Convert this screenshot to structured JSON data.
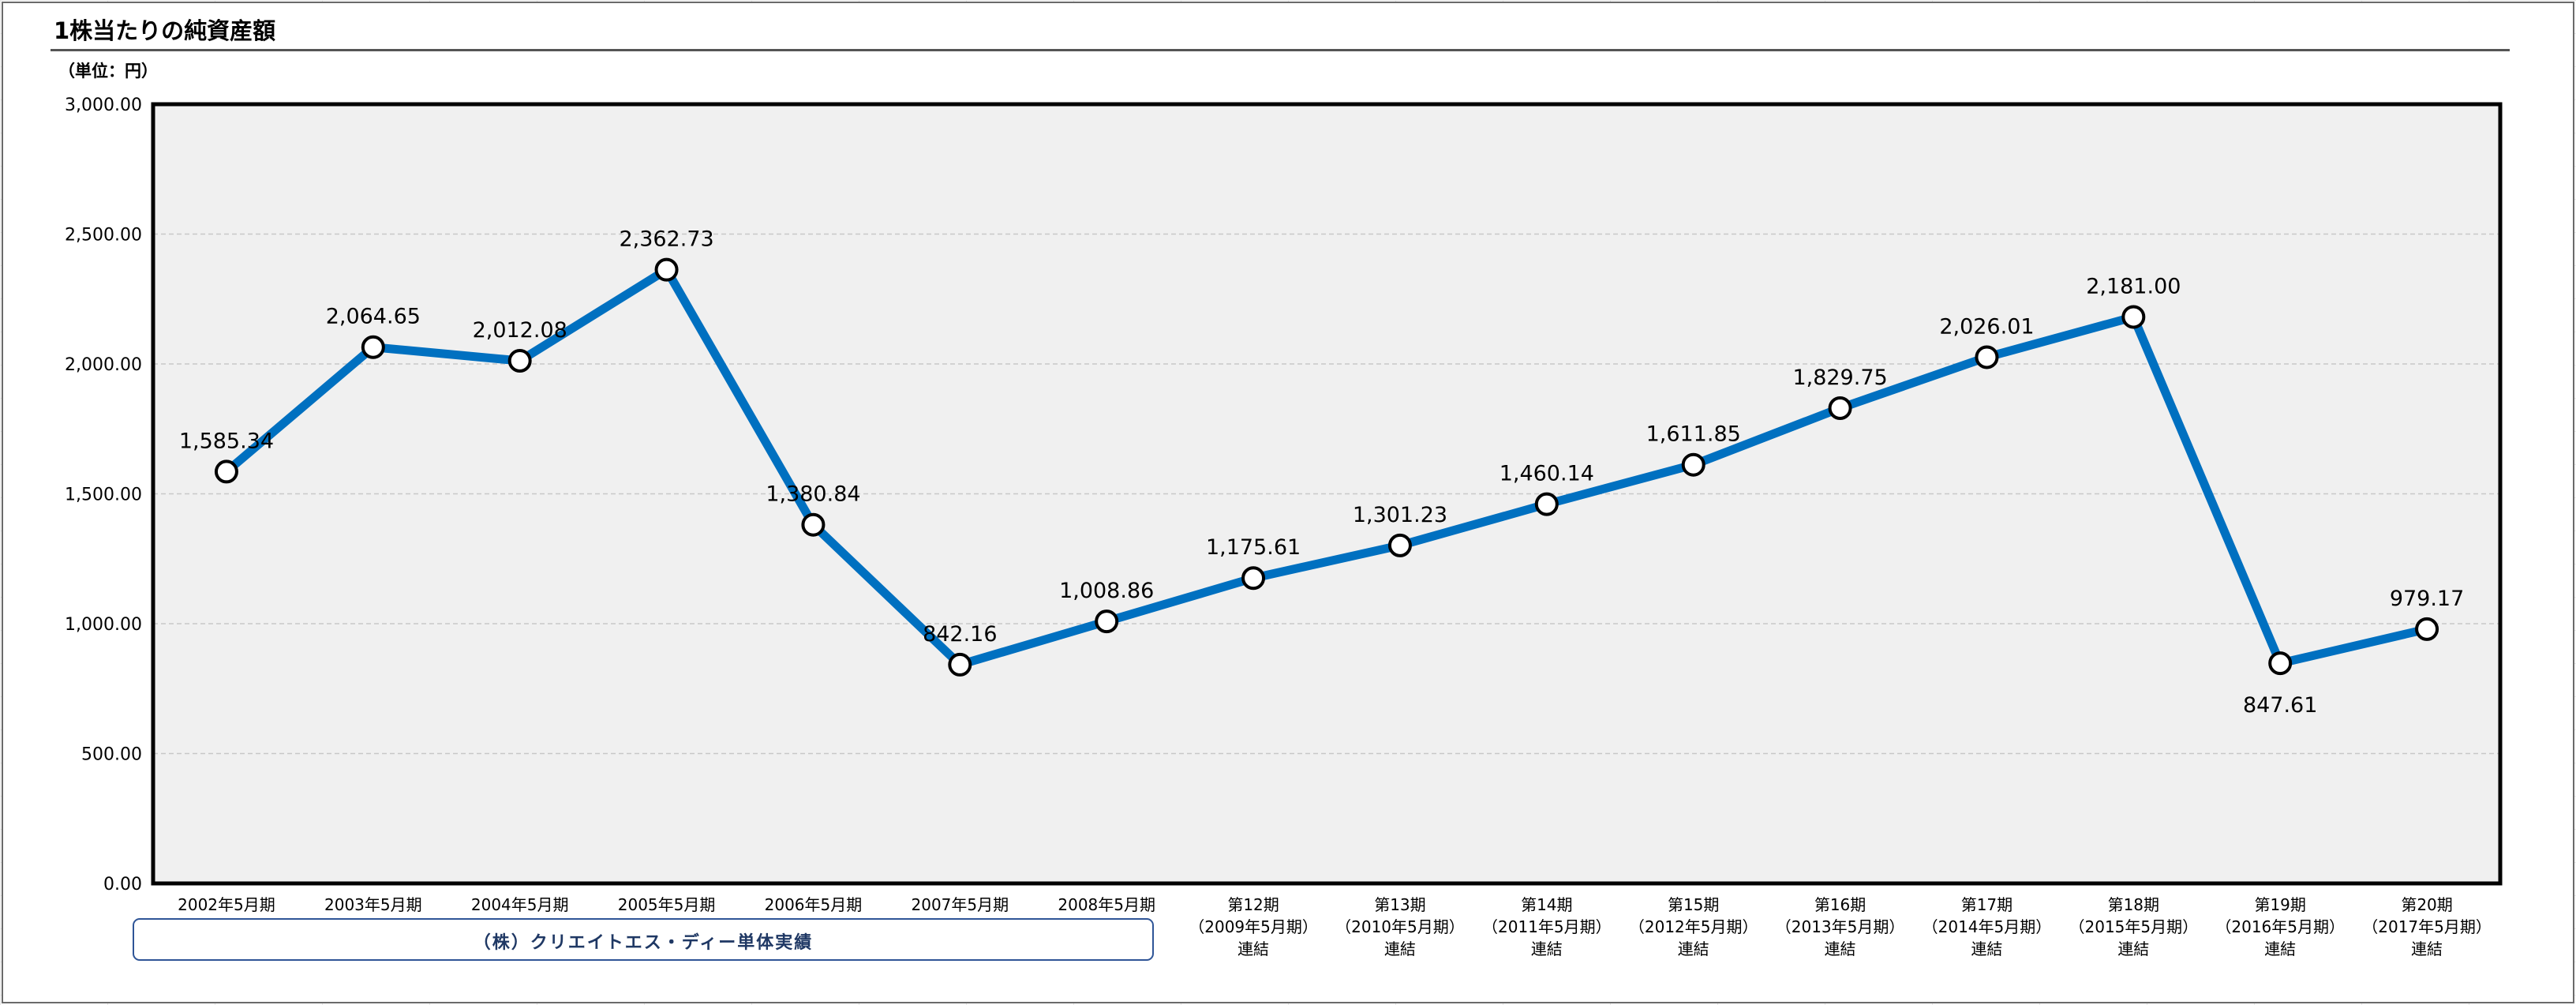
{
  "page": {
    "title": "1株当たりの純資産額",
    "unit": "（単位：円）",
    "group_label": "（株）クリエイトエス・ディー単体実績"
  },
  "chart_data": {
    "type": "line",
    "title": "1株当たりの純資産額",
    "ylabel": "（単位：円）",
    "ylim": [
      0,
      3000
    ],
    "yticks": [
      "0.00",
      "500.00",
      "1,000.00",
      "1,500.00",
      "2,000.00",
      "2,500.00",
      "3,000.00"
    ],
    "grid": true,
    "categories": [
      [
        "2002年5月期"
      ],
      [
        "2003年5月期"
      ],
      [
        "2004年5月期"
      ],
      [
        "2005年5月期"
      ],
      [
        "2006年5月期"
      ],
      [
        "2007年5月期"
      ],
      [
        "2008年5月期"
      ],
      [
        "第12期",
        "（2009年5月期）",
        "連結"
      ],
      [
        "第13期",
        "（2010年5月期）",
        "連結"
      ],
      [
        "第14期",
        "（2011年5月期）",
        "連結"
      ],
      [
        "第15期",
        "（2012年5月期）",
        "連結"
      ],
      [
        "第16期",
        "（2013年5月期）",
        "連結"
      ],
      [
        "第17期",
        "（2014年5月期）",
        "連結"
      ],
      [
        "第18期",
        "（2015年5月期）",
        "連結"
      ],
      [
        "第19期",
        "（2016年5月期）",
        "連結"
      ],
      [
        "第20期",
        "（2017年5月期）",
        "連結"
      ]
    ],
    "values": [
      1585.34,
      2064.65,
      2012.08,
      2362.73,
      1380.84,
      842.16,
      1008.86,
      1175.61,
      1301.23,
      1460.14,
      1611.85,
      1829.75,
      2026.01,
      2181.0,
      847.61,
      979.17
    ],
    "data_labels": [
      "1,585.34",
      "2,064.65",
      "2,012.08",
      "2,362.73",
      "1,380.84",
      "842.16",
      "1,008.86",
      "1,175.61",
      "1,301.23",
      "1,460.14",
      "1,611.85",
      "1,829.75",
      "2,026.01",
      "2,181.00",
      "847.61",
      "979.17"
    ],
    "label_below": [
      false,
      false,
      false,
      false,
      false,
      false,
      false,
      false,
      false,
      false,
      false,
      false,
      false,
      false,
      true,
      false
    ],
    "series_color": "#0070C0",
    "plot_bg": "#f0f0f0",
    "border_color": "#000000"
  }
}
